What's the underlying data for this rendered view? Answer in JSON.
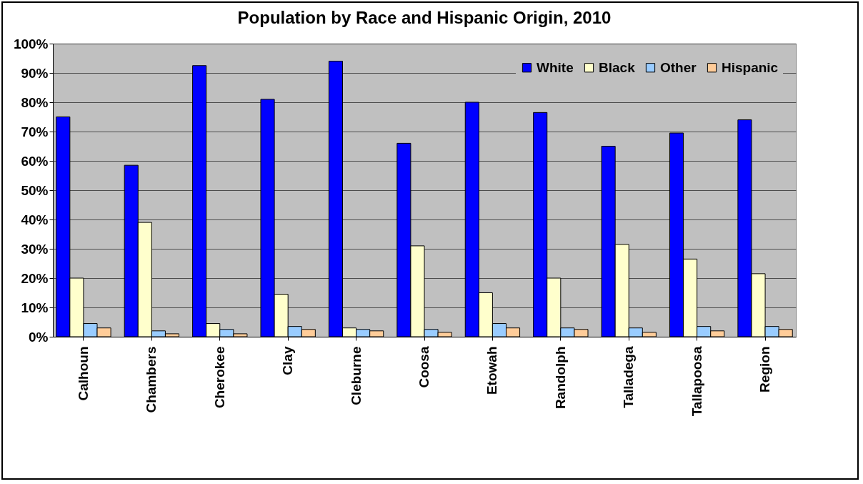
{
  "chart_data": {
    "type": "bar",
    "title": "Population by Race and Hispanic Origin, 2010",
    "categories": [
      "Calhoun",
      "Chambers",
      "Cherokee",
      "Clay",
      "Cleburne",
      "Coosa",
      "Etowah",
      "Randolph",
      "Talladega",
      "Tallapoosa",
      "Region"
    ],
    "series": [
      {
        "name": "White",
        "color": "#0000ff",
        "values": [
          75,
          58.5,
          92.5,
          81,
          94,
          66,
          80,
          76.5,
          65,
          69.5,
          74
        ]
      },
      {
        "name": "Black",
        "color": "#ffffcc",
        "values": [
          20,
          39,
          4.5,
          14.5,
          3,
          31,
          15,
          20,
          31.5,
          26.5,
          21.5
        ]
      },
      {
        "name": "Other",
        "color": "#99ccff",
        "values": [
          4.5,
          2,
          2.5,
          3.5,
          2.5,
          2.5,
          4.5,
          3,
          3,
          3.5,
          3.5
        ]
      },
      {
        "name": "Hispanic",
        "color": "#ffcc99",
        "values": [
          3,
          1,
          1,
          2.5,
          2,
          1.5,
          3,
          2.5,
          1.5,
          2,
          2.5
        ]
      }
    ],
    "ylim": [
      0,
      100
    ],
    "yticks": [
      {
        "value": 0,
        "label": "0%"
      },
      {
        "value": 10,
        "label": "10%"
      },
      {
        "value": 20,
        "label": "20%"
      },
      {
        "value": 30,
        "label": "30%"
      },
      {
        "value": 40,
        "label": "40%"
      },
      {
        "value": 50,
        "label": "50%"
      },
      {
        "value": 60,
        "label": "60%"
      },
      {
        "value": 70,
        "label": "70%"
      },
      {
        "value": 80,
        "label": "80%"
      },
      {
        "value": 90,
        "label": "90%"
      },
      {
        "value": 100,
        "label": "100%"
      }
    ],
    "grid": "y",
    "legend": "top right"
  }
}
